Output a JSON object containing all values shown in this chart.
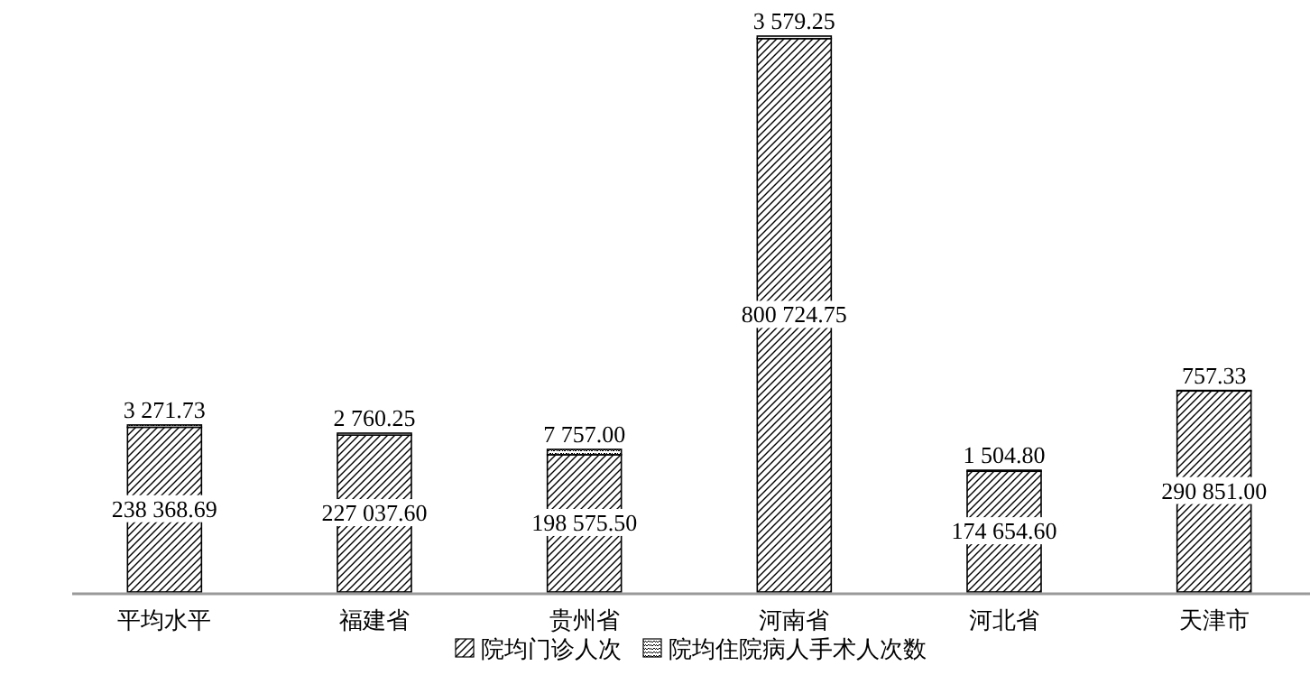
{
  "chart_data": {
    "type": "bar",
    "stacked": true,
    "legend": "bottom",
    "categories": [
      "平均水平",
      "福建省",
      "贵州省",
      "河南省",
      "河北省",
      "天津市"
    ],
    "series": [
      {
        "name": "院均门诊人次",
        "color": "#000000",
        "values": [
          238368.69,
          227037.6,
          198575.5,
          800724.75,
          174654.6,
          290851.0
        ],
        "value_labels": [
          "238 368.69",
          "227 037.60",
          "198 575.50",
          "800 724.75",
          "174 654.60",
          "290 851.00"
        ]
      },
      {
        "name": "院均住院病人手术人次数",
        "color": "#000000",
        "values": [
          3271.73,
          2760.25,
          7757.0,
          3579.25,
          1504.8,
          757.33
        ],
        "value_labels": [
          "3 271.73",
          "2 760.25",
          "7 757.00",
          "3 579.25",
          "1 504.80",
          "757.33"
        ]
      }
    ]
  }
}
